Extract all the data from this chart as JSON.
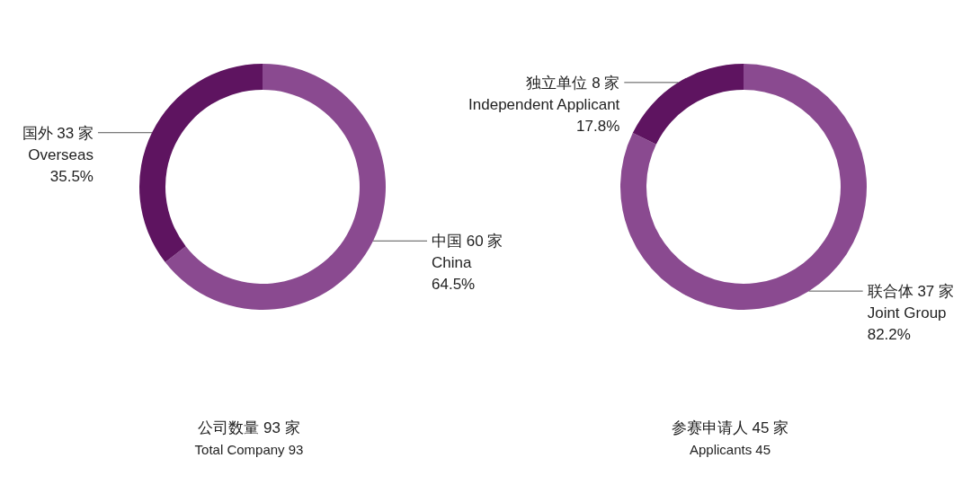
{
  "chart_data": [
    {
      "type": "donut",
      "title": "公司数量 93 家",
      "subtitle": "Total Company 93",
      "categories": [
        "中国 60 家\nChina",
        "国外 33 家\nOverseas"
      ],
      "values": [
        64.5,
        35.5
      ],
      "colors": [
        "#8a4a90",
        "#5e1460"
      ],
      "value_labels": [
        "64.5%",
        "35.5%"
      ]
    },
    {
      "type": "donut",
      "title": "参赛申请人 45 家",
      "subtitle": "Applicants 45",
      "categories": [
        "联合体 37 家\nJoint Group",
        "独立单位 8 家\nIndependent Applicant"
      ],
      "values": [
        82.2,
        17.8
      ],
      "colors": [
        "#8a4a90",
        "#5e1460"
      ],
      "value_labels": [
        "82.2%",
        "17.8%"
      ]
    }
  ]
}
